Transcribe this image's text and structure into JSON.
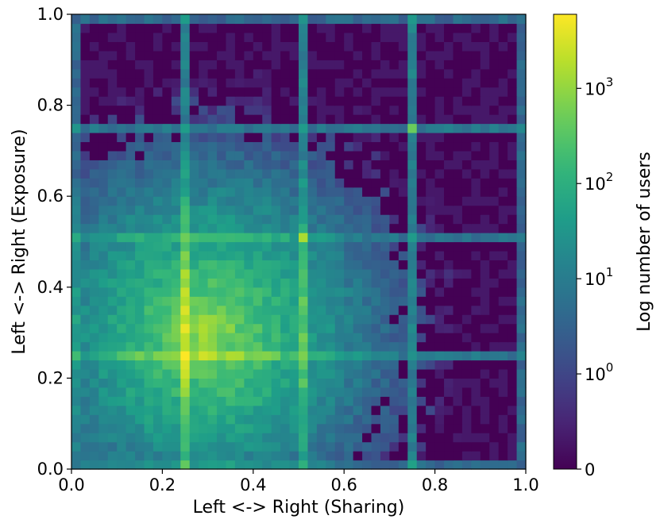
{
  "chart_data": {
    "type": "heatmap",
    "title": "",
    "xlabel": "Left <-> Right (Sharing)",
    "ylabel": "Left <-> Right (Exposure)",
    "colorbar_label": "Log number of users",
    "colormap": "viridis",
    "color_scale": "symlog",
    "xlim": [
      0.0,
      1.0
    ],
    "ylim": [
      0.0,
      1.0
    ],
    "x_ticks": [
      "0.0",
      "0.2",
      "0.4",
      "0.6",
      "0.8",
      "1.0"
    ],
    "y_ticks": [
      "0.0",
      "0.2",
      "0.4",
      "0.6",
      "0.8",
      "1.0"
    ],
    "colorbar_ticks": [
      {
        "base": "0",
        "exp": ""
      },
      {
        "base": "10",
        "exp": "0"
      },
      {
        "base": "10",
        "exp": "1"
      },
      {
        "base": "10",
        "exp": "2"
      },
      {
        "base": "10",
        "exp": "3"
      }
    ],
    "colorbar_range": [
      0,
      6000
    ],
    "bins": 50,
    "density_model": {
      "peak": {
        "x": 0.3,
        "y": 0.3,
        "log10_count": 3.0
      },
      "hot_spots": [
        {
          "x": 0.25,
          "y": 0.25,
          "count": 6000
        },
        {
          "x": 0.51,
          "y": 0.51,
          "count": 900
        },
        {
          "x": 0.755,
          "y": 0.755,
          "count": 300
        }
      ],
      "ridge_lines": [
        0.25,
        0.51,
        0.755
      ],
      "edge_lines": [
        0.0,
        0.995
      ]
    }
  }
}
